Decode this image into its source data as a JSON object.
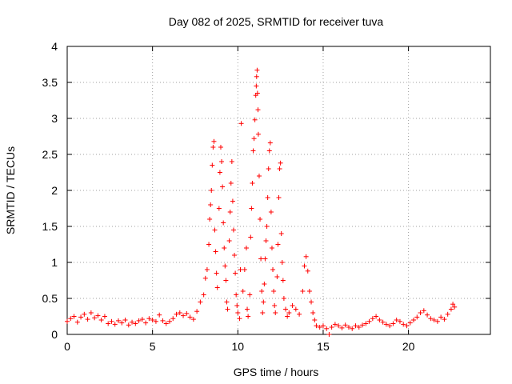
{
  "chart_data": {
    "type": "scatter",
    "title": "Day 082 of 2025, SRMTID for receiver tuva",
    "xlabel": "GPS time / hours",
    "ylabel": "SRMTID / TECUs",
    "xlim": [
      0,
      24.8
    ],
    "ylim": [
      0,
      4
    ],
    "xticks": [
      0,
      5,
      10,
      15,
      20
    ],
    "yticks": [
      0,
      0.5,
      1,
      1.5,
      2,
      2.5,
      3,
      3.5,
      4
    ],
    "xtick_labels": [
      "0",
      "5",
      "10",
      "15",
      "20"
    ],
    "ytick_labels": [
      "0",
      "0.5",
      "1",
      "1.5",
      "2",
      "2.5",
      "3",
      "3.5",
      "4"
    ],
    "grid": true,
    "marker": "+",
    "color": "#ff0000",
    "series": [
      {
        "name": "SRMTID",
        "points": [
          [
            0.0,
            0.18
          ],
          [
            0.2,
            0.22
          ],
          [
            0.4,
            0.25
          ],
          [
            0.6,
            0.17
          ],
          [
            0.8,
            0.24
          ],
          [
            1.0,
            0.28
          ],
          [
            1.2,
            0.21
          ],
          [
            1.4,
            0.3
          ],
          [
            1.6,
            0.23
          ],
          [
            1.8,
            0.26
          ],
          [
            2.0,
            0.2
          ],
          [
            2.2,
            0.25
          ],
          [
            2.4,
            0.15
          ],
          [
            2.6,
            0.18
          ],
          [
            2.8,
            0.14
          ],
          [
            3.0,
            0.19
          ],
          [
            3.2,
            0.16
          ],
          [
            3.4,
            0.2
          ],
          [
            3.6,
            0.13
          ],
          [
            3.8,
            0.17
          ],
          [
            4.0,
            0.15
          ],
          [
            4.2,
            0.19
          ],
          [
            4.4,
            0.21
          ],
          [
            4.6,
            0.16
          ],
          [
            4.8,
            0.22
          ],
          [
            5.0,
            0.2
          ],
          [
            5.2,
            0.18
          ],
          [
            5.4,
            0.27
          ],
          [
            5.6,
            0.19
          ],
          [
            5.8,
            0.15
          ],
          [
            6.0,
            0.18
          ],
          [
            6.2,
            0.22
          ],
          [
            6.4,
            0.28
          ],
          [
            6.6,
            0.3
          ],
          [
            6.8,
            0.26
          ],
          [
            7.0,
            0.29
          ],
          [
            7.2,
            0.24
          ],
          [
            7.4,
            0.21
          ],
          [
            7.6,
            0.32
          ],
          [
            7.8,
            0.45
          ],
          [
            8.0,
            0.55
          ],
          [
            8.1,
            0.78
          ],
          [
            8.2,
            0.9
          ],
          [
            8.3,
            1.25
          ],
          [
            8.35,
            1.6
          ],
          [
            8.4,
            1.8
          ],
          [
            8.45,
            2.0
          ],
          [
            8.5,
            2.35
          ],
          [
            8.55,
            2.6
          ],
          [
            8.6,
            2.68
          ],
          [
            8.65,
            1.45
          ],
          [
            8.7,
            1.15
          ],
          [
            8.75,
            0.85
          ],
          [
            8.8,
            0.65
          ],
          [
            8.9,
            1.75
          ],
          [
            8.95,
            2.25
          ],
          [
            9.0,
            2.6
          ],
          [
            9.05,
            2.4
          ],
          [
            9.1,
            2.05
          ],
          [
            9.15,
            1.55
          ],
          [
            9.2,
            1.2
          ],
          [
            9.25,
            0.95
          ],
          [
            9.3,
            0.75
          ],
          [
            9.35,
            0.45
          ],
          [
            9.4,
            0.35
          ],
          [
            9.5,
            1.3
          ],
          [
            9.55,
            1.7
          ],
          [
            9.6,
            2.1
          ],
          [
            9.65,
            2.4
          ],
          [
            9.7,
            1.85
          ],
          [
            9.75,
            1.45
          ],
          [
            9.8,
            1.1
          ],
          [
            9.85,
            0.85
          ],
          [
            9.9,
            0.55
          ],
          [
            9.95,
            0.4
          ],
          [
            10.0,
            0.3
          ],
          [
            10.1,
            0.22
          ],
          [
            10.15,
            0.9
          ],
          [
            10.2,
            2.93
          ],
          [
            10.3,
            0.6
          ],
          [
            10.4,
            0.9
          ],
          [
            10.5,
            1.2
          ],
          [
            10.55,
            0.35
          ],
          [
            10.6,
            0.25
          ],
          [
            10.7,
            0.55
          ],
          [
            10.75,
            1.35
          ],
          [
            10.8,
            1.75
          ],
          [
            10.85,
            2.1
          ],
          [
            10.9,
            2.55
          ],
          [
            10.95,
            2.72
          ],
          [
            11.0,
            2.98
          ],
          [
            11.05,
            3.32
          ],
          [
            11.08,
            3.45
          ],
          [
            11.1,
            3.58
          ],
          [
            11.13,
            3.67
          ],
          [
            11.15,
            3.35
          ],
          [
            11.18,
            3.12
          ],
          [
            11.2,
            2.78
          ],
          [
            11.25,
            2.2
          ],
          [
            11.3,
            1.6
          ],
          [
            11.35,
            1.05
          ],
          [
            11.4,
            0.6
          ],
          [
            11.45,
            0.3
          ],
          [
            11.5,
            0.45
          ],
          [
            11.55,
            0.7
          ],
          [
            11.6,
            1.05
          ],
          [
            11.65,
            1.3
          ],
          [
            11.7,
            1.5
          ],
          [
            11.75,
            1.9
          ],
          [
            11.8,
            2.3
          ],
          [
            11.85,
            2.55
          ],
          [
            11.9,
            2.66
          ],
          [
            11.95,
            1.7
          ],
          [
            12.0,
            1.2
          ],
          [
            12.05,
            0.9
          ],
          [
            12.1,
            0.6
          ],
          [
            12.15,
            0.4
          ],
          [
            12.2,
            0.3
          ],
          [
            12.3,
            0.8
          ],
          [
            12.35,
            1.25
          ],
          [
            12.4,
            1.9
          ],
          [
            12.45,
            2.3
          ],
          [
            12.5,
            2.38
          ],
          [
            12.55,
            1.4
          ],
          [
            12.6,
            1.0
          ],
          [
            12.65,
            0.75
          ],
          [
            12.7,
            0.5
          ],
          [
            12.8,
            0.35
          ],
          [
            12.9,
            0.25
          ],
          [
            13.0,
            0.3
          ],
          [
            13.2,
            0.4
          ],
          [
            13.4,
            0.35
          ],
          [
            13.6,
            0.28
          ],
          [
            13.8,
            0.6
          ],
          [
            13.9,
            0.95
          ],
          [
            14.0,
            1.08
          ],
          [
            14.1,
            0.88
          ],
          [
            14.2,
            0.6
          ],
          [
            14.3,
            0.45
          ],
          [
            14.4,
            0.3
          ],
          [
            14.5,
            0.2
          ],
          [
            14.6,
            0.12
          ],
          [
            14.8,
            0.1
          ],
          [
            15.0,
            0.12
          ],
          [
            15.2,
            0.08
          ],
          [
            15.35,
            0.0
          ],
          [
            15.5,
            0.1
          ],
          [
            15.7,
            0.14
          ],
          [
            15.9,
            0.12
          ],
          [
            16.1,
            0.09
          ],
          [
            16.3,
            0.13
          ],
          [
            16.5,
            0.1
          ],
          [
            16.7,
            0.08
          ],
          [
            16.9,
            0.12
          ],
          [
            17.1,
            0.1
          ],
          [
            17.3,
            0.13
          ],
          [
            17.5,
            0.15
          ],
          [
            17.7,
            0.18
          ],
          [
            17.9,
            0.22
          ],
          [
            18.1,
            0.25
          ],
          [
            18.3,
            0.2
          ],
          [
            18.5,
            0.17
          ],
          [
            18.7,
            0.14
          ],
          [
            18.9,
            0.12
          ],
          [
            19.1,
            0.15
          ],
          [
            19.3,
            0.2
          ],
          [
            19.5,
            0.18
          ],
          [
            19.7,
            0.14
          ],
          [
            19.9,
            0.12
          ],
          [
            20.1,
            0.16
          ],
          [
            20.3,
            0.2
          ],
          [
            20.5,
            0.24
          ],
          [
            20.7,
            0.3
          ],
          [
            20.9,
            0.33
          ],
          [
            21.1,
            0.27
          ],
          [
            21.3,
            0.22
          ],
          [
            21.5,
            0.2
          ],
          [
            21.7,
            0.18
          ],
          [
            21.9,
            0.24
          ],
          [
            22.1,
            0.21
          ],
          [
            22.3,
            0.28
          ],
          [
            22.5,
            0.35
          ],
          [
            22.6,
            0.42
          ],
          [
            22.7,
            0.38
          ]
        ]
      }
    ]
  }
}
